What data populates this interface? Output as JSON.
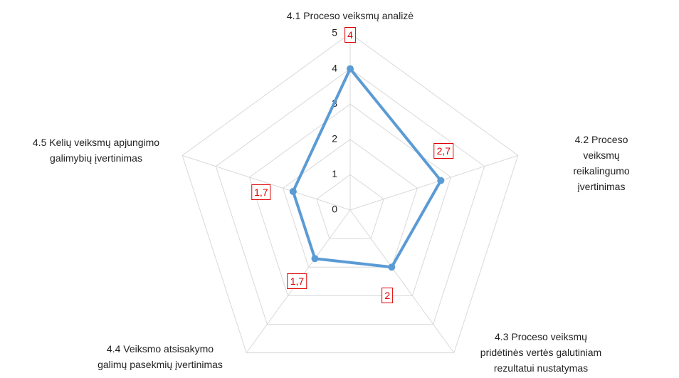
{
  "chart_data": {
    "type": "radar",
    "categories": [
      "4.1 Proceso veiksmų analizė",
      "4.2 Proceso veiksmų\nreikalingumo įvertinimas",
      "4.3 Proceso veiksmų\npridėtinės vertės galutiniam\nrezultatui nustatymas",
      "4.4 Veiksmo atsisakymo\ngalimų pasekmių įvertinimas",
      "4.5 Kelių veiksmų apjungimo\ngalimybių įvertinimas"
    ],
    "values": [
      4,
      2.7,
      2,
      1.7,
      1.7
    ],
    "value_labels": [
      "4",
      "2,7",
      "2",
      "1,7",
      "1,7"
    ],
    "color": "#5b9bd5",
    "ylim": [
      0,
      5
    ],
    "yticks": [
      0,
      1,
      2,
      3,
      4,
      5
    ],
    "grid": true
  }
}
